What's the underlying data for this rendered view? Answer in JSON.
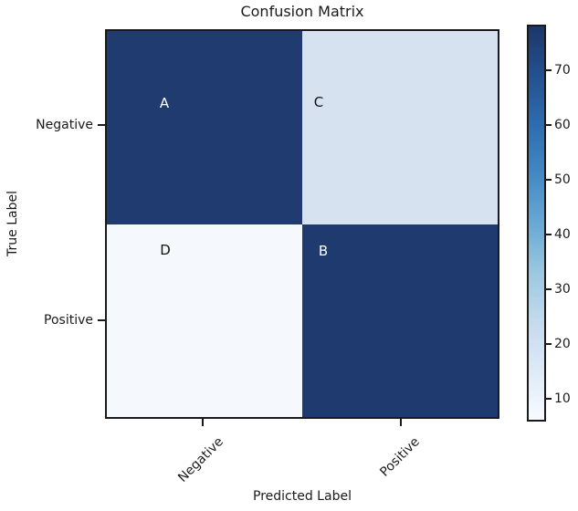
{
  "chart_data": {
    "type": "heatmap",
    "title": "Confusion Matrix",
    "xlabel": "Predicted Label",
    "ylabel": "True Label",
    "x_tick_labels": [
      "Negative",
      "Positive"
    ],
    "y_tick_labels": [
      "Negative",
      "Positive"
    ],
    "colormap": "Blues",
    "grid": "off",
    "cells": [
      {
        "true_label": "Negative",
        "predicted_label": "Negative",
        "text": "A",
        "color": "#1f3b6f",
        "text_color": "#ffffff",
        "shade": "dark"
      },
      {
        "true_label": "Negative",
        "predicted_label": "Positive",
        "text": "C",
        "color": "#d7e2f1",
        "text_color": "#111111",
        "shade": "light"
      },
      {
        "true_label": "Positive",
        "predicted_label": "Negative",
        "text": "D",
        "color": "#f5f9fd",
        "text_color": "#111111",
        "shade": "lightest"
      },
      {
        "true_label": "Positive",
        "predicted_label": "Positive",
        "text": "B",
        "color": "#1e3a6e",
        "text_color": "#ffffff",
        "shade": "dark"
      }
    ],
    "colorbar": {
      "position": "right",
      "tick_labels": [
        "70",
        "60",
        "50",
        "40",
        "30",
        "20",
        "10"
      ],
      "gradient_stops_top_to_bottom": [
        "#1c3768",
        "#24508f",
        "#2e6cb0",
        "#4289c3",
        "#68a8d4",
        "#9bc8e0",
        "#c4daee",
        "#ddeaf7",
        "#f7fbff"
      ]
    }
  }
}
